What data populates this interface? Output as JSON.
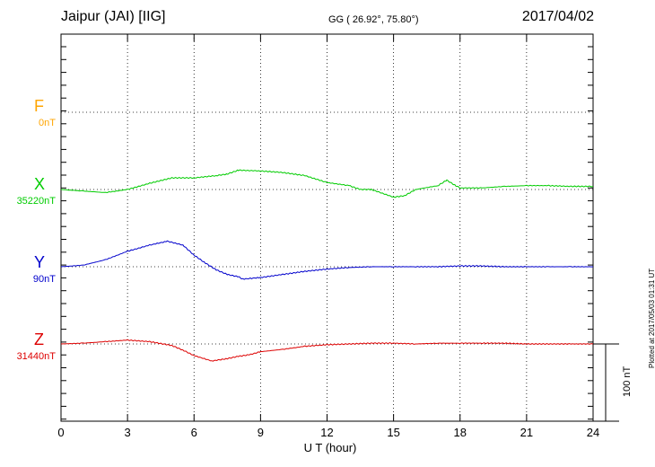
{
  "header": {
    "station": "Jaipur (JAI)  [IIG]",
    "coords": "GG ( 26.92°,  75.80°)",
    "date": "2017/04/02"
  },
  "components": [
    {
      "name": "F",
      "baseline": "0nT",
      "color": "#ffa500"
    },
    {
      "name": "X",
      "baseline": "35220nT",
      "color": "#00cc00"
    },
    {
      "name": "Y",
      "baseline": "90nT",
      "color": "#0000cc"
    },
    {
      "name": "Z",
      "baseline": "31440nT",
      "color": "#dd0000"
    }
  ],
  "scale_label": "100 nT",
  "plotted_note": "Plotted at 2017/05/03 01:31  UT",
  "chart_data": {
    "type": "line",
    "title": "Jaipur (JAI)  [IIG]",
    "xlabel": "U T (hour)",
    "ylabel": "",
    "xlim": [
      0,
      24
    ],
    "xticks": [
      0,
      3,
      6,
      9,
      12,
      15,
      18,
      21,
      24
    ],
    "grid": true,
    "series": [
      {
        "name": "X",
        "color": "#00cc00",
        "unit": "nT",
        "x": [
          0,
          1,
          2,
          3,
          4,
          5,
          6,
          7,
          7.5,
          8,
          9,
          10,
          11,
          12,
          13,
          13.5,
          14,
          15,
          15.5,
          16,
          17,
          17.4,
          17.8,
          18,
          19,
          20,
          21,
          22,
          23,
          24
        ],
        "values": [
          0,
          -2,
          -4,
          0,
          8,
          15,
          15,
          18,
          20,
          25,
          24,
          22,
          18,
          9,
          5,
          0,
          0,
          -10,
          -8,
          0,
          5,
          12,
          5,
          2,
          2,
          4,
          5,
          5,
          4,
          4
        ]
      },
      {
        "name": "Y",
        "color": "#0000cc",
        "unit": "nT",
        "x": [
          0,
          1,
          2,
          3,
          4,
          4.8,
          5.5,
          6,
          6.5,
          7,
          7.5,
          8,
          8.2,
          9,
          10,
          11,
          12,
          13,
          14,
          15,
          16,
          17,
          18,
          19,
          20,
          21,
          22,
          23,
          24
        ],
        "values": [
          0,
          2,
          9,
          20,
          28,
          33,
          28,
          15,
          5,
          -4,
          -10,
          -13,
          -16,
          -14,
          -10,
          -6,
          -3,
          -1,
          0,
          0,
          0,
          0,
          1,
          1,
          0,
          0,
          0,
          0,
          0
        ]
      },
      {
        "name": "Z",
        "color": "#dd0000",
        "unit": "nT",
        "x": [
          0,
          1,
          2,
          3,
          4,
          5,
          5.5,
          6,
          6.8,
          7.5,
          8,
          8.5,
          9,
          10,
          11,
          12,
          13,
          14,
          15,
          16,
          17,
          18,
          19,
          20,
          21,
          22,
          23,
          24
        ],
        "values": [
          0,
          1,
          3,
          5,
          3,
          -2,
          -8,
          -15,
          -22,
          -19,
          -16,
          -14,
          -10,
          -7,
          -3,
          -1,
          0,
          1,
          1,
          0,
          1,
          1,
          1,
          1,
          0,
          0,
          0,
          0
        ]
      }
    ]
  }
}
